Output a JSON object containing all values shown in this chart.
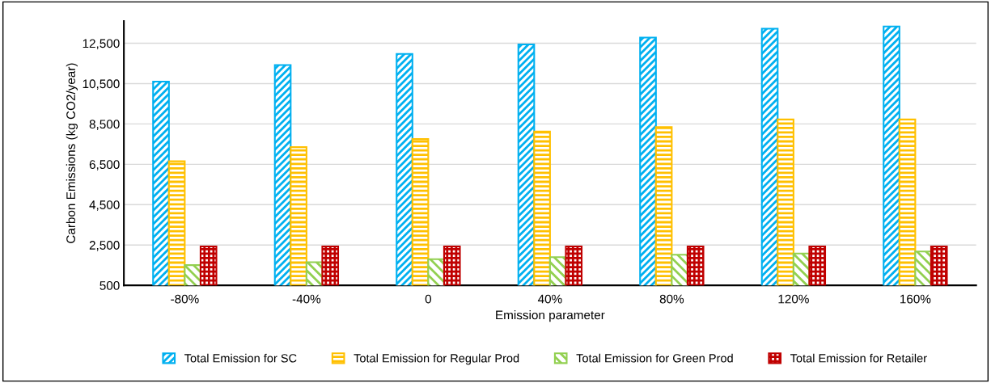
{
  "chart_data": {
    "type": "bar",
    "xlabel": "Emission parameter",
    "ylabel": "Carbon Emissions (kg CO2/year)",
    "categories": [
      "-80%",
      "-40%",
      "0",
      "40%",
      "80%",
      "120%",
      "160%"
    ],
    "series": [
      {
        "name": "Total Emission for SC",
        "color": "#00b0f0",
        "values": [
          10600,
          11420,
          11970,
          12440,
          12780,
          13220,
          13330
        ]
      },
      {
        "name": "Total Emission for Regular Prod",
        "color": "#ffc000",
        "values": [
          6650,
          7350,
          7750,
          8120,
          8340,
          8720,
          8720
        ]
      },
      {
        "name": "Total Emission for Green Prod",
        "color": "#92d050",
        "values": [
          1500,
          1650,
          1800,
          1900,
          2020,
          2080,
          2180
        ]
      },
      {
        "name": "Total Emission for Retailer",
        "color": "#c00000",
        "values": [
          2430,
          2430,
          2430,
          2430,
          2430,
          2430,
          2430
        ]
      }
    ],
    "ylim": [
      500,
      13600
    ],
    "yticks": [
      {
        "value": 500,
        "label": "500"
      },
      {
        "value": 2500,
        "label": "2,500"
      },
      {
        "value": 4500,
        "label": "4,500"
      },
      {
        "value": 6500,
        "label": "6,500"
      },
      {
        "value": 8500,
        "label": "8,500"
      },
      {
        "value": 10500,
        "label": "10,500"
      },
      {
        "value": 12500,
        "label": "12,500"
      }
    ],
    "grid": "y",
    "legend": "bottom"
  }
}
